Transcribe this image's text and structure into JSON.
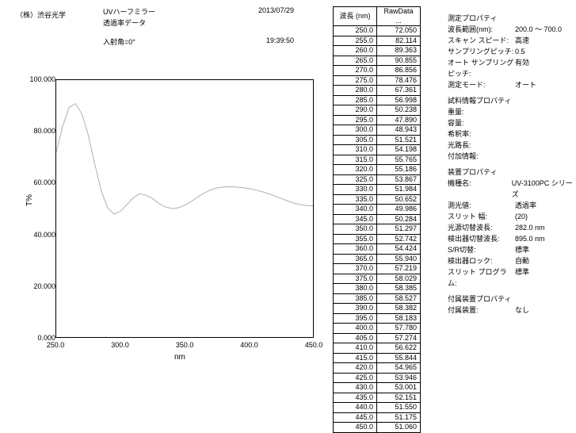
{
  "header": {
    "company": "（株）渋谷光学",
    "title_line1": "UVハーフミラー",
    "title_line2": "透過率データ",
    "angle": "入射角=0°",
    "date": "2013/07/29",
    "time": "19:39:50"
  },
  "chart": {
    "type": "line",
    "ylabel": "T%",
    "xlabel": "nm",
    "xlim": [
      250,
      450
    ],
    "ylim": [
      0,
      100
    ],
    "xticks": [
      250.0,
      300.0,
      350.0,
      400.0,
      450.0
    ],
    "yticks": [
      0.0,
      20.0,
      40.0,
      60.0,
      80.0,
      100.0
    ],
    "xtick_fmt": 1,
    "ytick_fmt": 3,
    "line_color": "#b0b0b0",
    "line_width": 1,
    "background": "#ffffff",
    "border_color": "#000000"
  },
  "table": {
    "col1": "波長 (nm)",
    "col2": "RawData ...",
    "rows": [
      [
        250.0,
        72.05
      ],
      [
        255.0,
        82.114
      ],
      [
        260.0,
        89.363
      ],
      [
        265.0,
        90.855
      ],
      [
        270.0,
        86.856
      ],
      [
        275.0,
        78.476
      ],
      [
        280.0,
        67.361
      ],
      [
        285.0,
        56.998
      ],
      [
        290.0,
        50.238
      ],
      [
        295.0,
        47.89
      ],
      [
        300.0,
        48.943
      ],
      [
        305.0,
        51.521
      ],
      [
        310.0,
        54.198
      ],
      [
        315.0,
        55.765
      ],
      [
        320.0,
        55.186
      ],
      [
        325.0,
        53.867
      ],
      [
        330.0,
        51.984
      ],
      [
        335.0,
        50.652
      ],
      [
        340.0,
        49.986
      ],
      [
        345.0,
        50.284
      ],
      [
        350.0,
        51.297
      ],
      [
        355.0,
        52.742
      ],
      [
        360.0,
        54.424
      ],
      [
        365.0,
        55.94
      ],
      [
        370.0,
        57.219
      ],
      [
        375.0,
        58.029
      ],
      [
        380.0,
        58.385
      ],
      [
        385.0,
        58.527
      ],
      [
        390.0,
        58.382
      ],
      [
        395.0,
        58.183
      ],
      [
        400.0,
        57.78
      ],
      [
        405.0,
        57.274
      ],
      [
        410.0,
        56.622
      ],
      [
        415.0,
        55.844
      ],
      [
        420.0,
        54.965
      ],
      [
        425.0,
        53.946
      ],
      [
        430.0,
        53.001
      ],
      [
        435.0,
        52.151
      ],
      [
        440.0,
        51.55
      ],
      [
        445.0,
        51.175
      ],
      [
        450.0,
        51.06
      ]
    ]
  },
  "props": {
    "sections": [
      {
        "title": "測定プロパティ",
        "rows": [
          [
            "波長範囲(nm):",
            "200.0 ～ 700.0"
          ],
          [
            "スキャン スピード:",
            "高速"
          ],
          [
            "サンプリングピッチ:",
            "0.5"
          ],
          [
            "オート サンプリングピッチ:",
            "有効"
          ],
          [
            "測定モード:",
            "オート"
          ]
        ]
      },
      {
        "title": "試料情報プロパティ",
        "rows": [
          [
            "重量:",
            ""
          ],
          [
            "容量:",
            ""
          ],
          [
            "希釈率:",
            ""
          ],
          [
            "光路長:",
            ""
          ],
          [
            "付加情報:",
            ""
          ]
        ]
      },
      {
        "title": "装置プロパティ",
        "rows": [
          [
            "機種名:",
            "UV-3100PC シリーズ"
          ],
          [
            "測光値:",
            "透過率"
          ],
          [
            "スリット 幅:",
            "(20)"
          ],
          [
            "光源切替波長:",
            "282.0 nm"
          ],
          [
            "検出器切替波長:",
            "895.0 nm"
          ],
          [
            "S/R切替:",
            "標準"
          ],
          [
            "検出器ロック:",
            "自動"
          ],
          [
            "スリット プログラム:",
            "標準"
          ]
        ]
      },
      {
        "title": "付属装置プロパティ",
        "rows": [
          [
            "付属装置:",
            "なし"
          ]
        ]
      }
    ]
  }
}
